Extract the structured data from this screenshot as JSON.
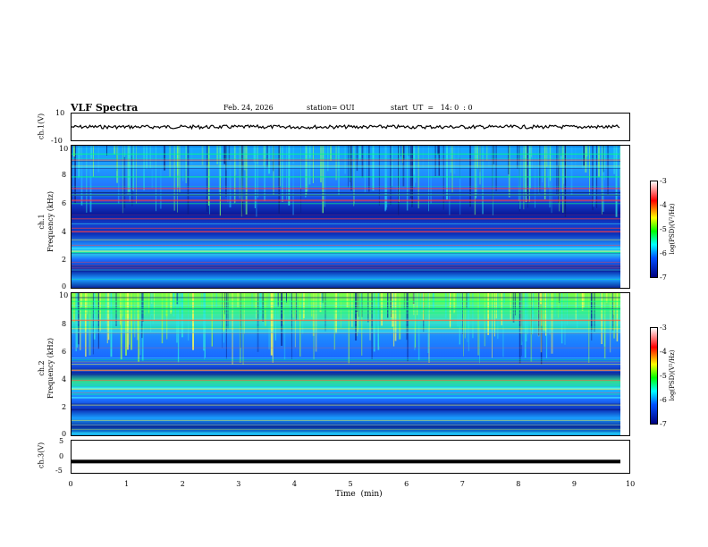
{
  "header": {
    "title": "VLF Spectra",
    "date": "Feb. 24, 2026",
    "station": "station= OUI",
    "start": "start  UT  =   14: 0  : 0"
  },
  "colors": {
    "line": "#000000",
    "background": "#ffffff"
  },
  "chart_data": [
    {
      "type": "line",
      "panel": "ch1-waveform",
      "ylabel": "ch.1(V)",
      "ylim": [
        -10,
        10
      ],
      "y_ticks": [
        "10",
        "-10"
      ],
      "xlim": [
        0,
        10
      ],
      "approx_level": 0.0
    },
    {
      "type": "heatmap",
      "panel": "ch1-spectrogram",
      "ylabel": "ch.1\nFrequency (kHz)",
      "ylabel_line1": "ch.1",
      "ylabel_line2": "Frequency (kHz)",
      "ylim": [
        0,
        10
      ],
      "y_ticks": [
        "0",
        "2",
        "4",
        "6",
        "8",
        "10"
      ],
      "xlim": [
        0,
        10
      ],
      "colorbar": {
        "label": "log(PSD)(V²/Hz)",
        "range": [
          -7,
          -3
        ],
        "ticks": [
          "-3",
          "-4",
          "-5",
          "-6",
          "-7"
        ]
      }
    },
    {
      "type": "heatmap",
      "panel": "ch2-spectrogram",
      "ylabel": "ch.2\nFrequency (kHz)",
      "ylabel_line1": "ch.2",
      "ylabel_line2": "Frequency (kHz)",
      "ylim": [
        0,
        10
      ],
      "y_ticks": [
        "0",
        "2",
        "4",
        "6",
        "8",
        "10"
      ],
      "xlim": [
        0,
        10
      ],
      "colorbar": {
        "label": "log(PSD)(V²/Hz)",
        "range": [
          -7,
          -3
        ],
        "ticks": [
          "-3",
          "-4",
          "-5",
          "-6",
          "-7"
        ]
      }
    },
    {
      "type": "line",
      "panel": "ch3-waveform",
      "ylabel": "ch.3(V)",
      "ylim": [
        -5,
        5
      ],
      "y_ticks": [
        "5",
        "0",
        "-5"
      ],
      "xlim": [
        0,
        10
      ],
      "approx_level": -1.5
    }
  ],
  "xaxis": {
    "label": "Time  (min)",
    "ticks": [
      "0",
      "1",
      "2",
      "3",
      "4",
      "5",
      "6",
      "7",
      "8",
      "9",
      "10"
    ]
  }
}
